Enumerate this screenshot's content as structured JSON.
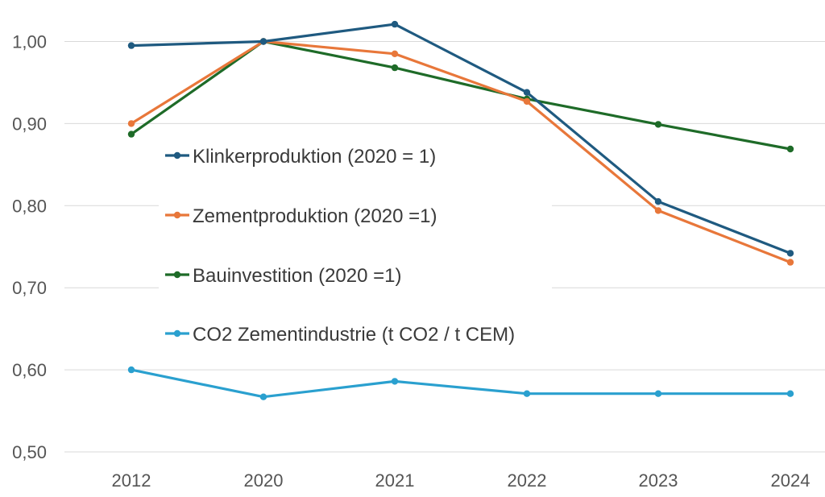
{
  "chart_data": {
    "type": "line",
    "categories": [
      "2012",
      "2020",
      "2021",
      "2022",
      "2023",
      "2024"
    ],
    "ylim": [
      0.5,
      1.05
    ],
    "y_ticks": [
      "0,50",
      "0,60",
      "0,70",
      "0,80",
      "0,90",
      "1,00"
    ],
    "grid": true,
    "legend_position": "left-center, inside plot",
    "series": [
      {
        "name": "Klinkerproduktion (2020 = 1)",
        "color": "#1f5a80",
        "values": [
          0.995,
          1.0,
          1.021,
          0.938,
          0.805,
          0.742
        ]
      },
      {
        "name": "Zementproduktion (2020 =1)",
        "color": "#e8773a",
        "values": [
          0.9,
          1.0,
          0.985,
          0.927,
          0.794,
          0.731
        ]
      },
      {
        "name": "Bauinvestition (2020 =1)",
        "color": "#1e6b28",
        "values": [
          0.887,
          1.0,
          0.968,
          0.93,
          0.899,
          0.869
        ]
      },
      {
        "name": "CO2 Zementindustrie (t CO2 / t CEM)",
        "color": "#2aa0cf",
        "values": [
          0.6,
          0.567,
          0.586,
          0.571,
          0.571,
          0.571
        ]
      }
    ]
  }
}
